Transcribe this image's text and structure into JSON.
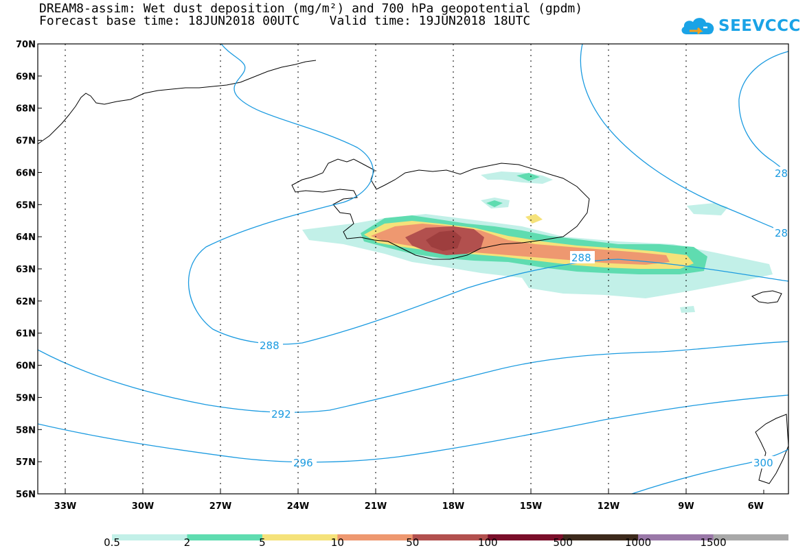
{
  "title": {
    "line1": "DREAM8-assim: Wet dust deposition (mg/m²) and 700 hPa geopotential (gpdm)",
    "line2": "Forecast base time: 18JUN2018 00UTC    Valid time: 19JUN2018 18UTC"
  },
  "logo": {
    "text": "SEEVCCC",
    "icon": "cloud-icon"
  },
  "axes": {
    "lat_labels": [
      "70N",
      "69N",
      "68N",
      "67N",
      "66N",
      "65N",
      "64N",
      "63N",
      "62N",
      "61N",
      "60N",
      "59N",
      "58N",
      "57N",
      "56N"
    ],
    "lon_labels": [
      "33W",
      "30W",
      "27W",
      "24W",
      "21W",
      "18W",
      "15W",
      "12W",
      "9W",
      "6W"
    ]
  },
  "contours": {
    "color": "#1a9ae0",
    "labels": [
      "288",
      "288",
      "292",
      "296",
      "300",
      "28",
      "28"
    ]
  },
  "colorbar": {
    "ticks": [
      "0.5",
      "2",
      "5",
      "10",
      "50",
      "100",
      "500",
      "1000",
      "1500"
    ],
    "colors": [
      "#c2f0e8",
      "#5fdcb0",
      "#f5e27a",
      "#ee9870",
      "#b2504e",
      "#7a0f2a",
      "#3d2a1c",
      "#9a78a8",
      "#a8a8a8"
    ]
  },
  "shading_colors": {
    "lightest": "#c2f0e8",
    "light": "#5fdcb0",
    "yellow": "#f5e27a",
    "orange": "#ee9870",
    "brown": "#b2504e"
  }
}
